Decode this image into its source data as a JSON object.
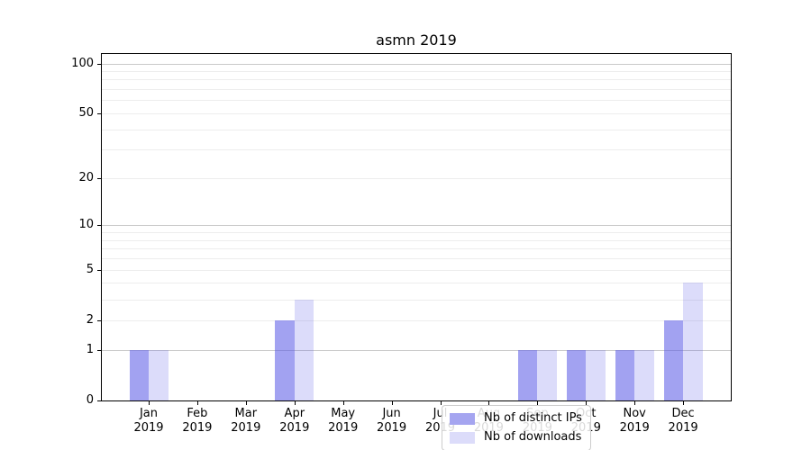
{
  "figure": {
    "title": "asmn 2019"
  },
  "chart_data": {
    "type": "bar",
    "title": "asmn 2019",
    "x_categories": [
      "Jan",
      "Feb",
      "Mar",
      "Apr",
      "May",
      "Jun",
      "Jul",
      "Aug",
      "Sep",
      "Oct",
      "Nov",
      "Dec"
    ],
    "x_sublabel": "2019",
    "series": [
      {
        "name": "Nb of distinct IPs",
        "color": "rgba(90,90,230,0.56)",
        "legend_color": "#a5a5f0",
        "values": [
          1,
          0,
          0,
          2,
          0,
          0,
          0,
          0,
          1,
          1,
          1,
          2
        ]
      },
      {
        "name": "Nb of downloads",
        "color": "rgba(90,90,230,0.21)",
        "legend_color": "#dcdcfa",
        "values": [
          1,
          0,
          0,
          3,
          0,
          0,
          0,
          0,
          1,
          1,
          1,
          4
        ]
      }
    ],
    "ylabel": "",
    "xlabel": "",
    "yscale": "log1p",
    "ylim": [
      0,
      114
    ],
    "yticks": [
      0,
      1,
      2,
      5,
      10,
      20,
      50,
      100
    ],
    "grid": {
      "orientation": "horizontal",
      "major": [
        1,
        10,
        100
      ],
      "minor": [
        2,
        3,
        4,
        5,
        6,
        7,
        8,
        9,
        20,
        30,
        40,
        50,
        60,
        70,
        80,
        90
      ],
      "major_color": "#c9c9c9",
      "minor_color": "#ededed"
    },
    "legend_position": "lower center"
  }
}
